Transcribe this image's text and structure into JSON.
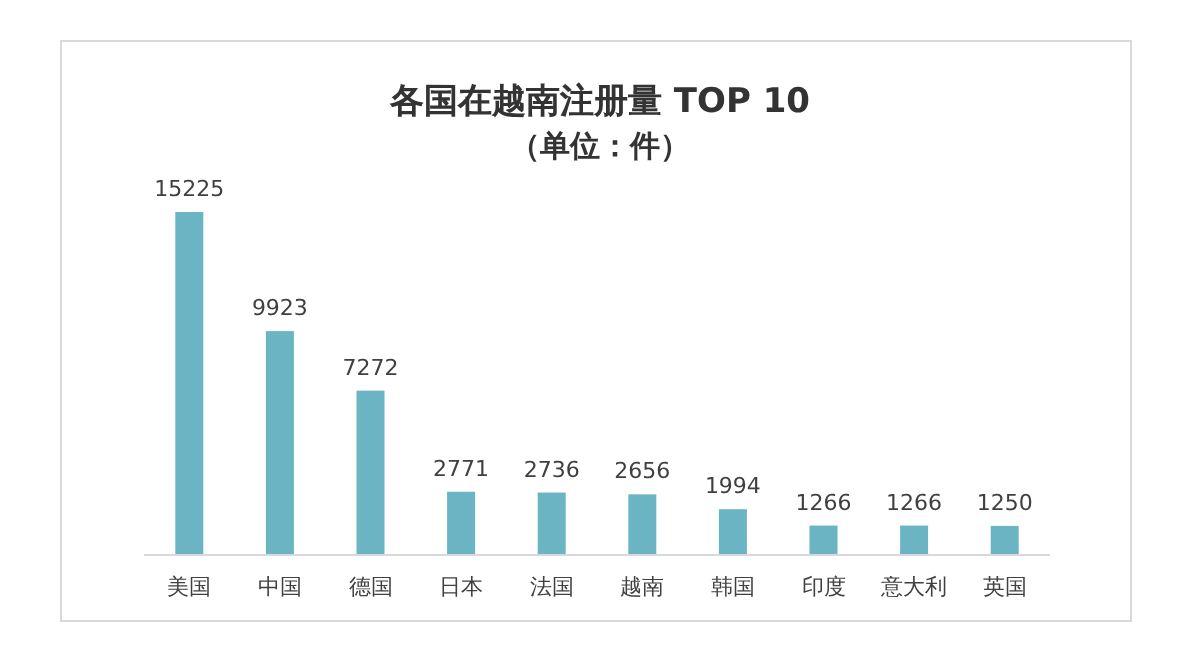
{
  "chart_data": {
    "type": "bar",
    "title": "各国在越南注册量 TOP 10",
    "subtitle": "（单位：件）",
    "categories": [
      "美国",
      "中国",
      "德国",
      "日本",
      "法国",
      "越南",
      "韩国",
      "印度",
      "意大利",
      "英国"
    ],
    "values": [
      15225,
      9923,
      7272,
      2771,
      2736,
      2656,
      1994,
      1266,
      1266,
      1250
    ],
    "color": "#6ab4c4",
    "data_labels": true
  }
}
